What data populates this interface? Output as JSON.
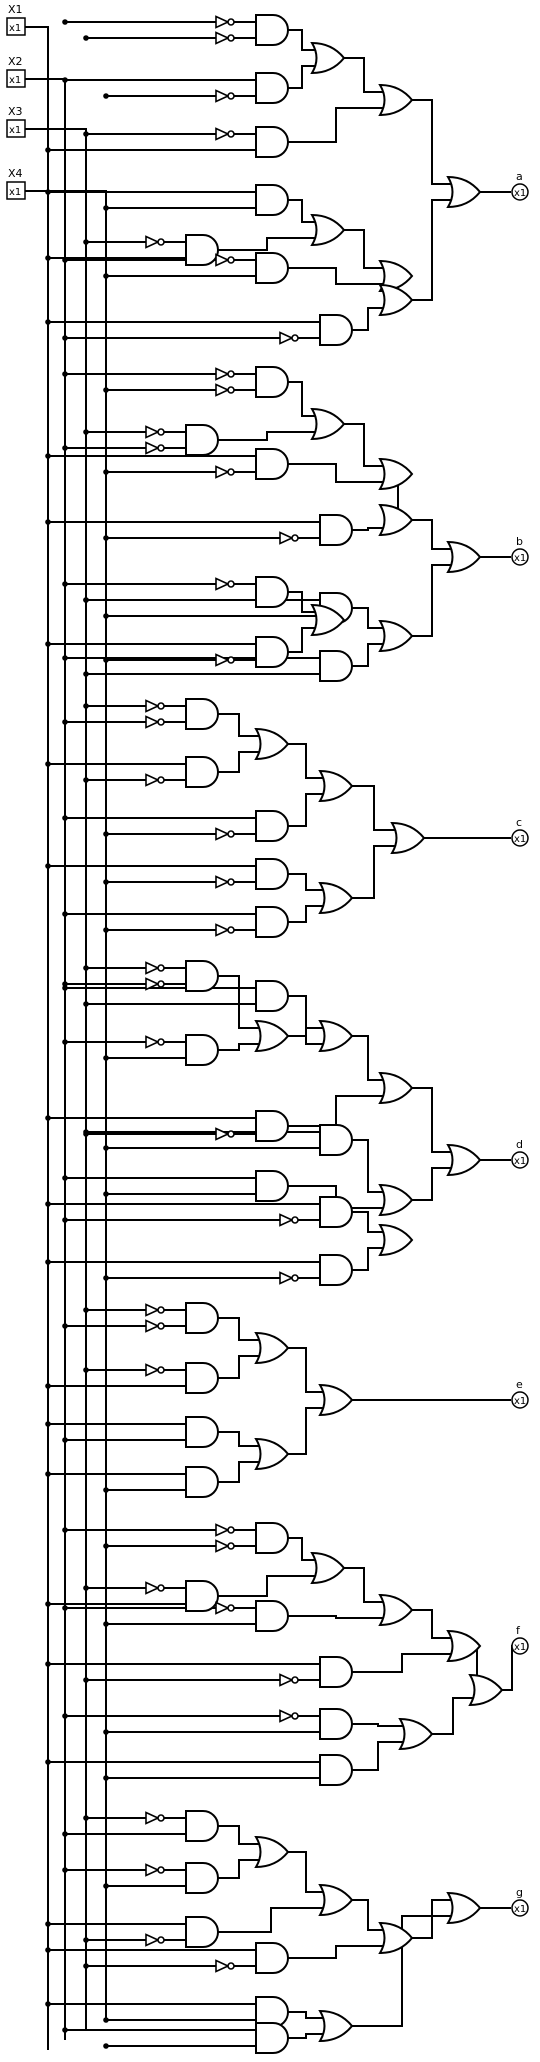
{
  "diagram": {
    "inputs": [
      {
        "id": "x1",
        "label": "X1",
        "box_text": "x1"
      },
      {
        "id": "x2",
        "label": "X2",
        "box_text": "x1"
      },
      {
        "id": "x3",
        "label": "X3",
        "box_text": "x1"
      },
      {
        "id": "x4",
        "label": "X4",
        "box_text": "x1"
      }
    ],
    "outputs": [
      {
        "id": "a",
        "label": "a",
        "box_text": "x1"
      },
      {
        "id": "b",
        "label": "b",
        "box_text": "x1"
      },
      {
        "id": "c",
        "label": "c",
        "box_text": "x1"
      },
      {
        "id": "d",
        "label": "d",
        "box_text": "x1"
      },
      {
        "id": "e",
        "label": "e",
        "box_text": "x1"
      },
      {
        "id": "f",
        "label": "f",
        "box_text": "x1"
      },
      {
        "id": "g",
        "label": "g",
        "box_text": "x1"
      }
    ]
  }
}
